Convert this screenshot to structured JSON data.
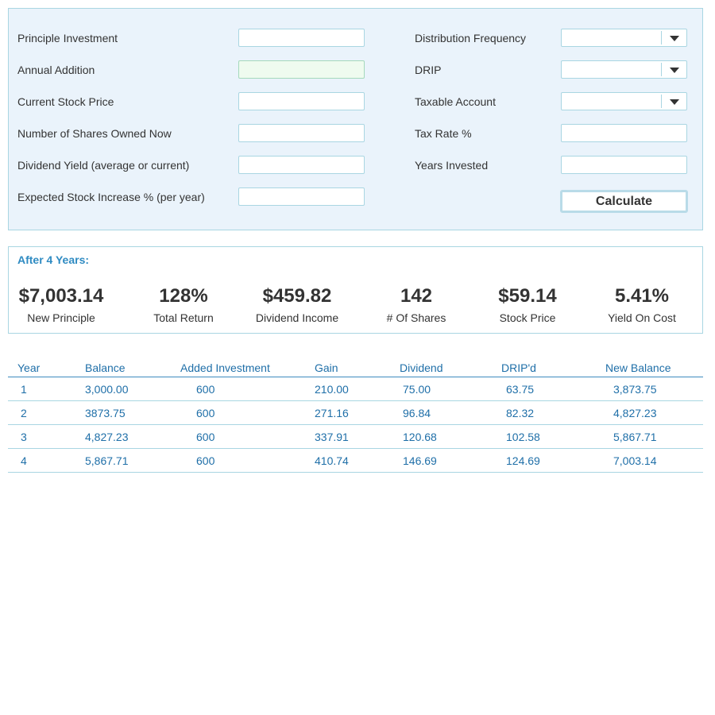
{
  "form": {
    "left_fields": [
      {
        "label": "Principle Investment",
        "value": "",
        "highlight": false
      },
      {
        "label": "Annual Addition",
        "value": "",
        "highlight": true
      },
      {
        "label": "Current Stock Price",
        "value": ""
      },
      {
        "label": "Number of Shares Owned Now",
        "value": ""
      },
      {
        "label": "Dividend Yield (average or current)",
        "value": ""
      },
      {
        "label": "Expected Stock Increase % (per year)",
        "value": ""
      }
    ],
    "right_fields": [
      {
        "label": "Distribution Frequency",
        "type": "select",
        "value": ""
      },
      {
        "label": "DRIP",
        "type": "select",
        "value": ""
      },
      {
        "label": "Taxable Account",
        "type": "select",
        "value": ""
      },
      {
        "label": "Tax Rate %",
        "type": "input",
        "value": ""
      },
      {
        "label": "Years Invested",
        "type": "input",
        "value": ""
      }
    ],
    "calculate_label": "Calculate"
  },
  "results": {
    "heading": "After 4 Years:",
    "stats": [
      {
        "value": "$7,003.14",
        "label": "New Principle"
      },
      {
        "value": "128%",
        "label": "Total Return"
      },
      {
        "value": "$459.82",
        "label": "Dividend Income"
      },
      {
        "value": "142",
        "label": "# Of Shares"
      },
      {
        "value": "$59.14",
        "label": "Stock Price"
      },
      {
        "value": "5.41%",
        "label": "Yield On Cost"
      }
    ]
  },
  "table": {
    "headers": [
      "Year",
      "Balance",
      "Added Investment",
      "Gain",
      "Dividend",
      "DRIP'd",
      "New Balance"
    ],
    "rows": [
      [
        "1",
        "3,000.00",
        "600",
        "210.00",
        "75.00",
        "63.75",
        "3,873.75"
      ],
      [
        "2",
        "3873.75",
        "600",
        "271.16",
        "96.84",
        "82.32",
        "4,827.23"
      ],
      [
        "3",
        "4,827.23",
        "600",
        "337.91",
        "120.68",
        "102.58",
        "5,867.71"
      ],
      [
        "4",
        "5,867.71",
        "600",
        "410.74",
        "146.69",
        "124.69",
        "7,003.14"
      ]
    ]
  },
  "colors": {
    "panel_bg": "#eaf3fb",
    "border": "#a9d6e2",
    "accent_blue": "#2f8bc2",
    "table_text": "#1f6fa8",
    "highlight_input": "#effbef"
  },
  "icons": {
    "select_caret": "caret-down-icon"
  }
}
